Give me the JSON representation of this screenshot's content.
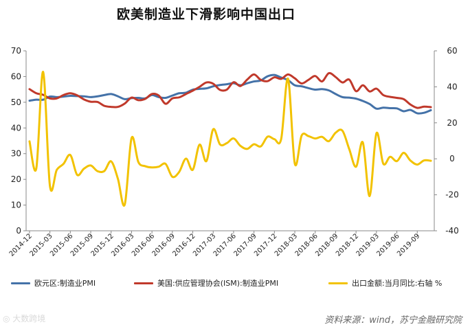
{
  "title": "欧美制造业下滑影响中国出口",
  "source": "资料来源：wind，苏宁金融研究院",
  "watermark": "◎ 大数跨境",
  "chart_data": {
    "type": "line",
    "title": "欧美制造业下滑影响中国出口",
    "x": [
      "2014-12",
      "2015-01",
      "2015-02",
      "2015-03",
      "2015-04",
      "2015-05",
      "2015-06",
      "2015-07",
      "2015-08",
      "2015-09",
      "2015-10",
      "2015-11",
      "2015-12",
      "2016-01",
      "2016-02",
      "2016-03",
      "2016-04",
      "2016-05",
      "2016-06",
      "2016-07",
      "2016-08",
      "2016-09",
      "2016-10",
      "2016-11",
      "2016-12",
      "2017-01",
      "2017-02",
      "2017-03",
      "2017-04",
      "2017-05",
      "2017-06",
      "2017-07",
      "2017-08",
      "2017-09",
      "2017-10",
      "2017-11",
      "2017-12",
      "2018-01",
      "2018-02",
      "2018-03",
      "2018-04",
      "2018-05",
      "2018-06",
      "2018-07",
      "2018-08",
      "2018-09",
      "2018-10",
      "2018-11",
      "2018-12",
      "2019-01",
      "2019-02",
      "2019-03",
      "2019-04",
      "2019-05",
      "2019-06",
      "2019-07",
      "2019-08",
      "2019-09",
      "2019-10",
      "2019-11"
    ],
    "xticks": [
      "2014-12",
      "2015-03",
      "2015-06",
      "2015-09",
      "2015-12",
      "2016-03",
      "2016-06",
      "2016-09",
      "2016-12",
      "2017-03",
      "2017-06",
      "2017-09",
      "2017-12",
      "2018-03",
      "2018-06",
      "2018-09",
      "2018-12",
      "2019-03",
      "2019-06",
      "2019-09"
    ],
    "ylim_left": [
      0,
      70
    ],
    "yticks_left": [
      "0",
      "10",
      "20",
      "30",
      "40",
      "50",
      "60",
      "70"
    ],
    "ylim_right": [
      -40,
      60
    ],
    "yticks_right": [
      "-40",
      "-20",
      "0",
      "20",
      "40",
      "60"
    ],
    "series": [
      {
        "name": "欧元区:制造业PMI",
        "axis": "left",
        "color": "#4472a8",
        "values": [
          50.6,
          51.0,
          51.0,
          52.2,
          52.0,
          52.2,
          52.5,
          52.4,
          52.3,
          52.0,
          52.3,
          52.8,
          53.2,
          52.3,
          51.2,
          51.6,
          51.7,
          51.5,
          52.8,
          52.0,
          51.7,
          52.6,
          53.5,
          53.7,
          54.9,
          55.2,
          55.4,
          56.2,
          56.7,
          57.0,
          57.4,
          56.6,
          57.4,
          58.1,
          58.5,
          60.1,
          60.6,
          59.6,
          58.6,
          56.6,
          56.2,
          55.5,
          54.9,
          55.1,
          54.6,
          53.2,
          52.0,
          51.8,
          51.4,
          50.5,
          49.3,
          47.5,
          47.9,
          47.7,
          47.6,
          46.5,
          47.0,
          45.7,
          45.9,
          46.9
        ]
      },
      {
        "name": "美国:供应管理协会(ISM):制造业PMI",
        "axis": "left",
        "color": "#c0392b",
        "values": [
          55.1,
          53.5,
          52.9,
          51.5,
          51.5,
          52.8,
          53.5,
          52.7,
          51.1,
          50.2,
          50.1,
          48.6,
          48.2,
          48.2,
          49.5,
          51.8,
          50.8,
          51.3,
          53.2,
          52.6,
          49.4,
          51.5,
          51.9,
          53.2,
          54.5,
          56.0,
          57.7,
          57.2,
          54.8,
          54.9,
          57.8,
          56.3,
          58.8,
          60.8,
          58.7,
          58.2,
          59.7,
          59.1,
          60.8,
          59.3,
          57.3,
          58.7,
          60.2,
          58.1,
          61.3,
          59.8,
          57.7,
          58.8,
          54.3,
          56.6,
          54.2,
          55.3,
          52.8,
          52.1,
          51.7,
          51.2,
          49.1,
          47.8,
          48.3,
          48.1
        ]
      },
      {
        "name": "出口金额:当月同比:右轴 %",
        "axis": "right",
        "color": "#f2c200",
        "values": [
          9.7,
          -5.3,
          48.3,
          -15.0,
          -6.2,
          -2.8,
          2.1,
          -8.9,
          -5.5,
          -3.7,
          -6.9,
          -6.8,
          -1.4,
          -11.2,
          -25.4,
          11.5,
          -1.8,
          -4.1,
          -4.8,
          -4.4,
          -2.8,
          -10.0,
          -7.3,
          0.1,
          -6.1,
          7.9,
          -1.3,
          16.4,
          8.0,
          8.7,
          11.3,
          7.2,
          5.5,
          8.1,
          6.9,
          12.3,
          10.9,
          11.1,
          44.5,
          -2.7,
          12.9,
          12.6,
          11.3,
          12.2,
          9.8,
          14.5,
          15.6,
          5.4,
          -4.4,
          9.1,
          -20.7,
          14.2,
          -2.7,
          1.1,
          -1.3,
          3.3,
          -1.0,
          -3.2,
          -0.9,
          -1.1
        ]
      }
    ]
  }
}
